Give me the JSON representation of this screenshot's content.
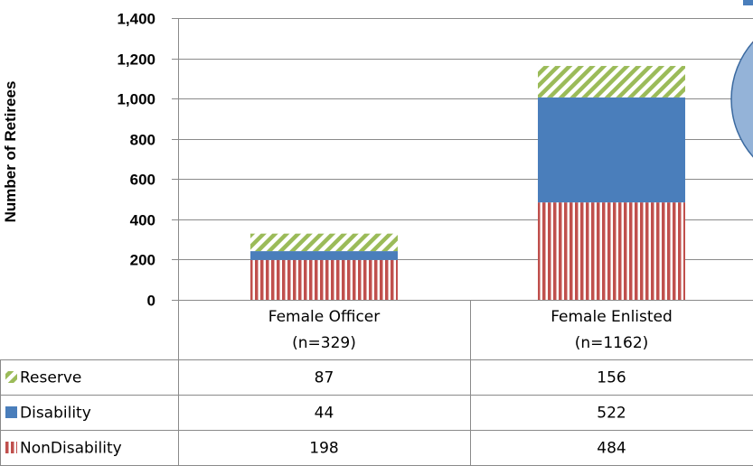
{
  "chart_data": {
    "type": "bar",
    "stacked": true,
    "categories": [
      "Female Officer\n(n=329)",
      "Female Enlisted\n(n=1162)"
    ],
    "category_lines": [
      [
        "Female Officer",
        "(n=329)"
      ],
      [
        "Female Enlisted",
        "(n=1162)"
      ]
    ],
    "series": [
      {
        "name": "NonDisability",
        "values": [
          198,
          484
        ],
        "color": "#c0504d",
        "pattern": "vertical-stripes"
      },
      {
        "name": "Disability",
        "values": [
          44,
          522
        ],
        "color": "#4a7ebb",
        "pattern": "solid"
      },
      {
        "name": "Reserve",
        "values": [
          87,
          156
        ],
        "color": "#9bbb59",
        "pattern": "diagonal-stripes"
      }
    ],
    "table_rows": [
      {
        "label": "Reserve",
        "values": [
          "87",
          "156"
        ],
        "series": 2
      },
      {
        "label": "Disability",
        "values": [
          "44",
          "522"
        ],
        "series": 1
      },
      {
        "label": "NonDisability",
        "values": [
          "198",
          "484"
        ],
        "series": 0
      }
    ],
    "ylabel": "Number of Retirees",
    "ylim": [
      0,
      1400
    ],
    "yticks": [
      0,
      200,
      400,
      600,
      800,
      1000,
      1200,
      1400
    ],
    "ytick_labels": [
      "0",
      "200",
      "400",
      "600",
      "800",
      "1,000",
      "1,200",
      "1,400"
    ],
    "grid": true,
    "data_table": true
  }
}
